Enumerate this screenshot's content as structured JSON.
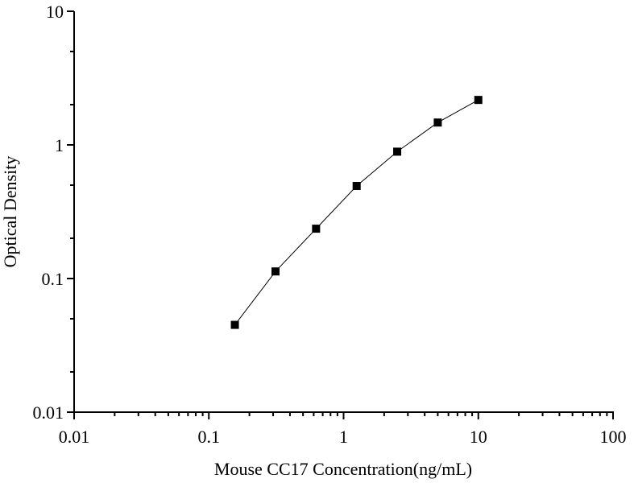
{
  "chart_data": {
    "type": "line",
    "title": "",
    "xlabel": "Mouse CC17 Concentration(ng/mL)",
    "ylabel": "Optical Density",
    "xscale": "log",
    "yscale": "log",
    "xlim": [
      0.01,
      100
    ],
    "ylim": [
      0.01,
      10
    ],
    "xticks": [
      0.01,
      0.1,
      1,
      10,
      100
    ],
    "xtick_labels": [
      "0.01",
      "0.1",
      "1",
      "10",
      "100"
    ],
    "yticks": [
      0.01,
      0.1,
      1,
      10
    ],
    "ytick_labels": [
      "0.01",
      "0.1",
      "1",
      "10"
    ],
    "grid": false,
    "marker": "square",
    "color": "#000000",
    "series": [
      {
        "x": [
          0.156,
          0.3125,
          0.625,
          1.25,
          2.5,
          5,
          10
        ],
        "y": [
          0.045,
          0.113,
          0.236,
          0.493,
          0.89,
          1.47,
          2.17
        ]
      }
    ]
  }
}
